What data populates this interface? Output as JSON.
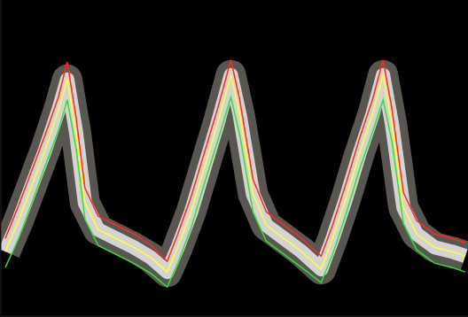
{
  "chart_data": {
    "type": "line",
    "tick_labels": false,
    "grid": false,
    "x": [
      5,
      20,
      35,
      50,
      65,
      75,
      85,
      95,
      110,
      130,
      150,
      170,
      188,
      200,
      215,
      230,
      245,
      260,
      270,
      285,
      300,
      320,
      340,
      362,
      375,
      390,
      405,
      420,
      432,
      442,
      455,
      470,
      490,
      510,
      525
    ],
    "xlim": [
      0,
      528
    ],
    "ylim": [
      0,
      358
    ],
    "series": [
      {
        "color": "#ff2a1a",
        "values": [
          88,
          125,
          165,
          205,
          248,
          288,
          225,
          145,
          113,
          103,
          93,
          80,
          62,
          93,
          135,
          185,
          235,
          290,
          245,
          155,
          118,
          103,
          88,
          68,
          103,
          150,
          200,
          245,
          290,
          235,
          140,
          108,
          93,
          88,
          83
        ]
      },
      {
        "color": "#ffff3a",
        "values": [
          73,
          108,
          148,
          188,
          233,
          268,
          208,
          128,
          98,
          88,
          78,
          66,
          50,
          78,
          118,
          168,
          218,
          273,
          228,
          138,
          103,
          88,
          73,
          53,
          88,
          133,
          183,
          228,
          273,
          218,
          123,
          93,
          78,
          73,
          68
        ]
      },
      {
        "color": "#33e033",
        "values": [
          55,
          88,
          128,
          170,
          210,
          245,
          190,
          110,
          80,
          70,
          60,
          48,
          33,
          60,
          100,
          150,
          198,
          248,
          205,
          118,
          85,
          70,
          55,
          38,
          70,
          115,
          165,
          208,
          245,
          198,
          105,
          75,
          60,
          55,
          50
        ]
      }
    ]
  }
}
